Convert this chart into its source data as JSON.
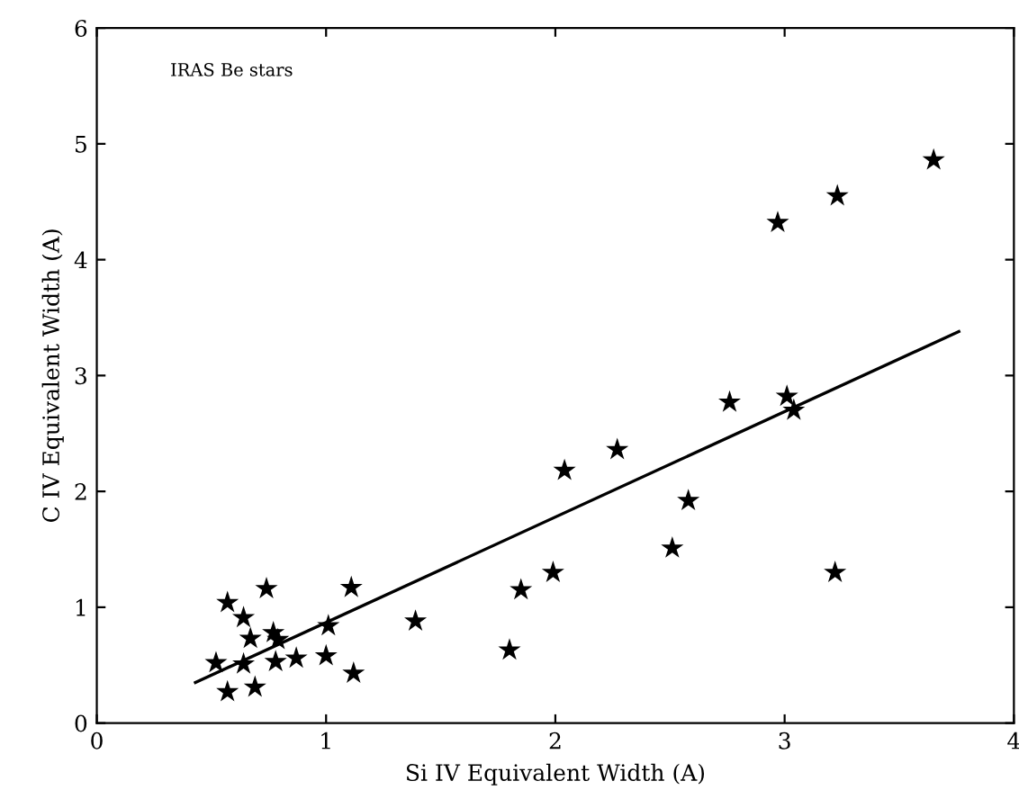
{
  "chart_data": {
    "type": "scatter",
    "xlabel": "Si IV Equivalent Width (A)",
    "ylabel": "C IV Equivalent Width (A)",
    "annotations": [
      "IRAS Be stars"
    ],
    "xlim": [
      0,
      4
    ],
    "ylim": [
      0,
      6
    ],
    "xticks": [
      0,
      1,
      2,
      3,
      4
    ],
    "yticks": [
      0,
      1,
      2,
      3,
      4,
      5,
      6
    ],
    "grid": false,
    "series": [
      {
        "marker": "star",
        "color": "#000000",
        "x": [
          0.52,
          0.57,
          0.57,
          0.64,
          0.67,
          0.64,
          0.69,
          0.74,
          0.77,
          0.79,
          0.78,
          0.87,
          1.0,
          1.01,
          1.11,
          1.12,
          1.39,
          1.8,
          1.85,
          1.99,
          2.04,
          2.27,
          2.51,
          2.58,
          2.76,
          2.97,
          3.01,
          3.04,
          3.23,
          3.22,
          3.65
        ],
        "values": [
          0.52,
          1.04,
          0.27,
          0.91,
          0.73,
          0.51,
          0.31,
          1.16,
          0.78,
          0.72,
          0.53,
          0.56,
          0.58,
          0.84,
          1.17,
          0.43,
          0.88,
          0.63,
          1.15,
          1.3,
          2.18,
          2.36,
          1.51,
          1.92,
          2.77,
          4.32,
          2.82,
          2.7,
          4.55,
          1.3,
          4.86
        ]
      },
      {
        "type": "line",
        "color": "#000000",
        "x": [
          0.43,
          3.76
        ],
        "values": [
          0.35,
          3.38
        ]
      }
    ]
  }
}
